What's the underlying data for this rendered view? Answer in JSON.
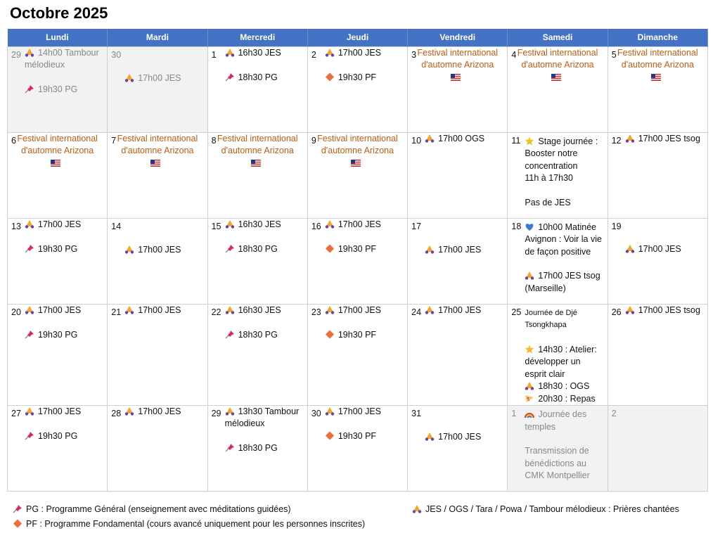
{
  "title": "Octobre 2025",
  "colors": {
    "header": "#4472c4",
    "festival": "#c55a11",
    "muted_bg": "#f2f2f2"
  },
  "weekdays": [
    "Lundi",
    "Mardi",
    "Mercredi",
    "Jeudi",
    "Vendredi",
    "Samedi",
    "Dimanche"
  ],
  "festival": {
    "text": "Festival international d'automne Arizona",
    "icon": "us-flag-icon"
  },
  "weeks": [
    [
      {
        "day": "29",
        "muted": true,
        "events": [
          {
            "icon": "pray",
            "text": "14h00 Tambour mélodieux"
          },
          {
            "icon": "pin",
            "text": "19h30 PG"
          }
        ]
      },
      {
        "day": "30",
        "muted": true,
        "events": [
          {
            "icon": "pray",
            "text": "17h00 JES"
          },
          null
        ]
      },
      {
        "day": "1",
        "events": [
          {
            "icon": "pray",
            "text": "16h30 JES"
          },
          {
            "icon": "pin",
            "text": "18h30 PG"
          }
        ]
      },
      {
        "day": "2",
        "events": [
          {
            "icon": "pray",
            "text": "17h00 JES"
          },
          {
            "icon": "diamond",
            "text": "19h30 PF"
          }
        ]
      },
      {
        "day": "3",
        "festival": true
      },
      {
        "day": "4",
        "festival": true
      },
      {
        "day": "5",
        "festival": true
      }
    ],
    [
      {
        "day": "6",
        "festival": true
      },
      {
        "day": "7",
        "festival": true
      },
      {
        "day": "8",
        "festival": true
      },
      {
        "day": "9",
        "festival": true
      },
      {
        "day": "10",
        "events": [
          {
            "icon": "pray",
            "text": "17h00 OGS"
          }
        ]
      },
      {
        "day": "11",
        "sat": [
          {
            "icon": "star",
            "text": "Stage journée : Booster notre concentration"
          },
          {
            "text": "11h à 17h30"
          },
          {
            "gap": true
          },
          {
            "text": "Pas de JES"
          }
        ]
      },
      {
        "day": "12",
        "events": [
          {
            "icon": "pray",
            "text": "17h00 JES tsog"
          }
        ]
      }
    ],
    [
      {
        "day": "13",
        "events": [
          {
            "icon": "pray",
            "text": "17h00 JES"
          },
          {
            "icon": "pin",
            "text": "19h30 PG"
          }
        ]
      },
      {
        "day": "14",
        "events": [
          {
            "icon": "pray",
            "text": "17h00 JES"
          },
          null
        ]
      },
      {
        "day": "15",
        "events": [
          {
            "icon": "pray",
            "text": "16h30 JES"
          },
          {
            "icon": "pin",
            "text": "18h30 PG"
          }
        ]
      },
      {
        "day": "16",
        "events": [
          {
            "icon": "pray",
            "text": "17h00 JES"
          },
          {
            "icon": "diamond",
            "text": "19h30 PF"
          }
        ]
      },
      {
        "day": "17",
        "events": [
          {
            "icon": "pray",
            "text": "17h00 JES"
          },
          null
        ]
      },
      {
        "day": "18",
        "sat": [
          {
            "icon": "heart",
            "text": "10h00 Matinée Avignon : Voir la vie de façon positive"
          },
          {
            "gap": true
          },
          {
            "icon": "pray",
            "text": "17h00 JES tsog (Marseille)"
          }
        ]
      },
      {
        "day": "19",
        "events": [
          null,
          {
            "icon": "pray",
            "text": "17h00 JES"
          }
        ]
      }
    ],
    [
      {
        "day": "20",
        "events": [
          {
            "icon": "pray",
            "text": "17h00 JES"
          },
          {
            "icon": "pin",
            "text": "19h30 PG"
          }
        ]
      },
      {
        "day": "21",
        "events": [
          {
            "icon": "pray",
            "text": "17h00 JES"
          }
        ]
      },
      {
        "day": "22",
        "events": [
          {
            "icon": "pray",
            "text": "16h30 JES"
          },
          {
            "icon": "pin",
            "text": "18h30 PG"
          }
        ]
      },
      {
        "day": "23",
        "events": [
          {
            "icon": "pray",
            "text": "17h00 JES"
          },
          {
            "icon": "diamond",
            "text": "19h30 PF"
          }
        ]
      },
      {
        "day": "24",
        "events": [
          {
            "icon": "pray",
            "text": "17h00 JES"
          }
        ]
      },
      {
        "day": "25",
        "sat": [
          {
            "small": true,
            "text": "Journée de Djé Tsongkhapa"
          },
          {
            "gap": true
          },
          {
            "icon": "star",
            "text": "14h30 : Atelier: développer un esprit clair"
          },
          {
            "icon": "pray",
            "text": "18h30 : OGS"
          },
          {
            "icon": "pizza",
            "text": "20h30 : Repas"
          }
        ]
      },
      {
        "day": "26",
        "events": [
          {
            "icon": "pray",
            "text": "17h00 JES tsog"
          }
        ]
      }
    ],
    [
      {
        "day": "27",
        "events": [
          {
            "icon": "pray",
            "text": "17h00 JES"
          },
          {
            "icon": "pin",
            "text": "19h30 PG"
          }
        ]
      },
      {
        "day": "28",
        "events": [
          {
            "icon": "pray",
            "text": "17h00 JES"
          }
        ]
      },
      {
        "day": "29",
        "events": [
          {
            "icon": "pray",
            "text": "13h30 Tambour mélodieux"
          },
          {
            "icon": "pin",
            "text": "18h30 PG"
          }
        ]
      },
      {
        "day": "30",
        "events": [
          {
            "icon": "pray",
            "text": "17h00 JES"
          },
          {
            "icon": "diamond",
            "text": "19h30 PF"
          }
        ]
      },
      {
        "day": "31",
        "events": [
          {
            "icon": "pray",
            "text": "17h00 JES"
          },
          null
        ]
      },
      {
        "day": "1",
        "muted": true,
        "sat": [
          {
            "icon": "rainbow",
            "text": "Journée des temples"
          },
          {
            "gap": true
          },
          {
            "text": "Transmission de bénédictions au CMK Montpellier"
          }
        ]
      },
      {
        "day": "2",
        "muted": true,
        "events": []
      }
    ]
  ],
  "legend": {
    "pg": "PG : Programme Général (enseignement avec méditations guidées)",
    "pf": "PF : Programme Fondamental (cours avancé uniquement pour les personnes inscrites)",
    "prayers": "JES / OGS / Tara / Powa / Tambour mélodieux : Prières chantées"
  }
}
